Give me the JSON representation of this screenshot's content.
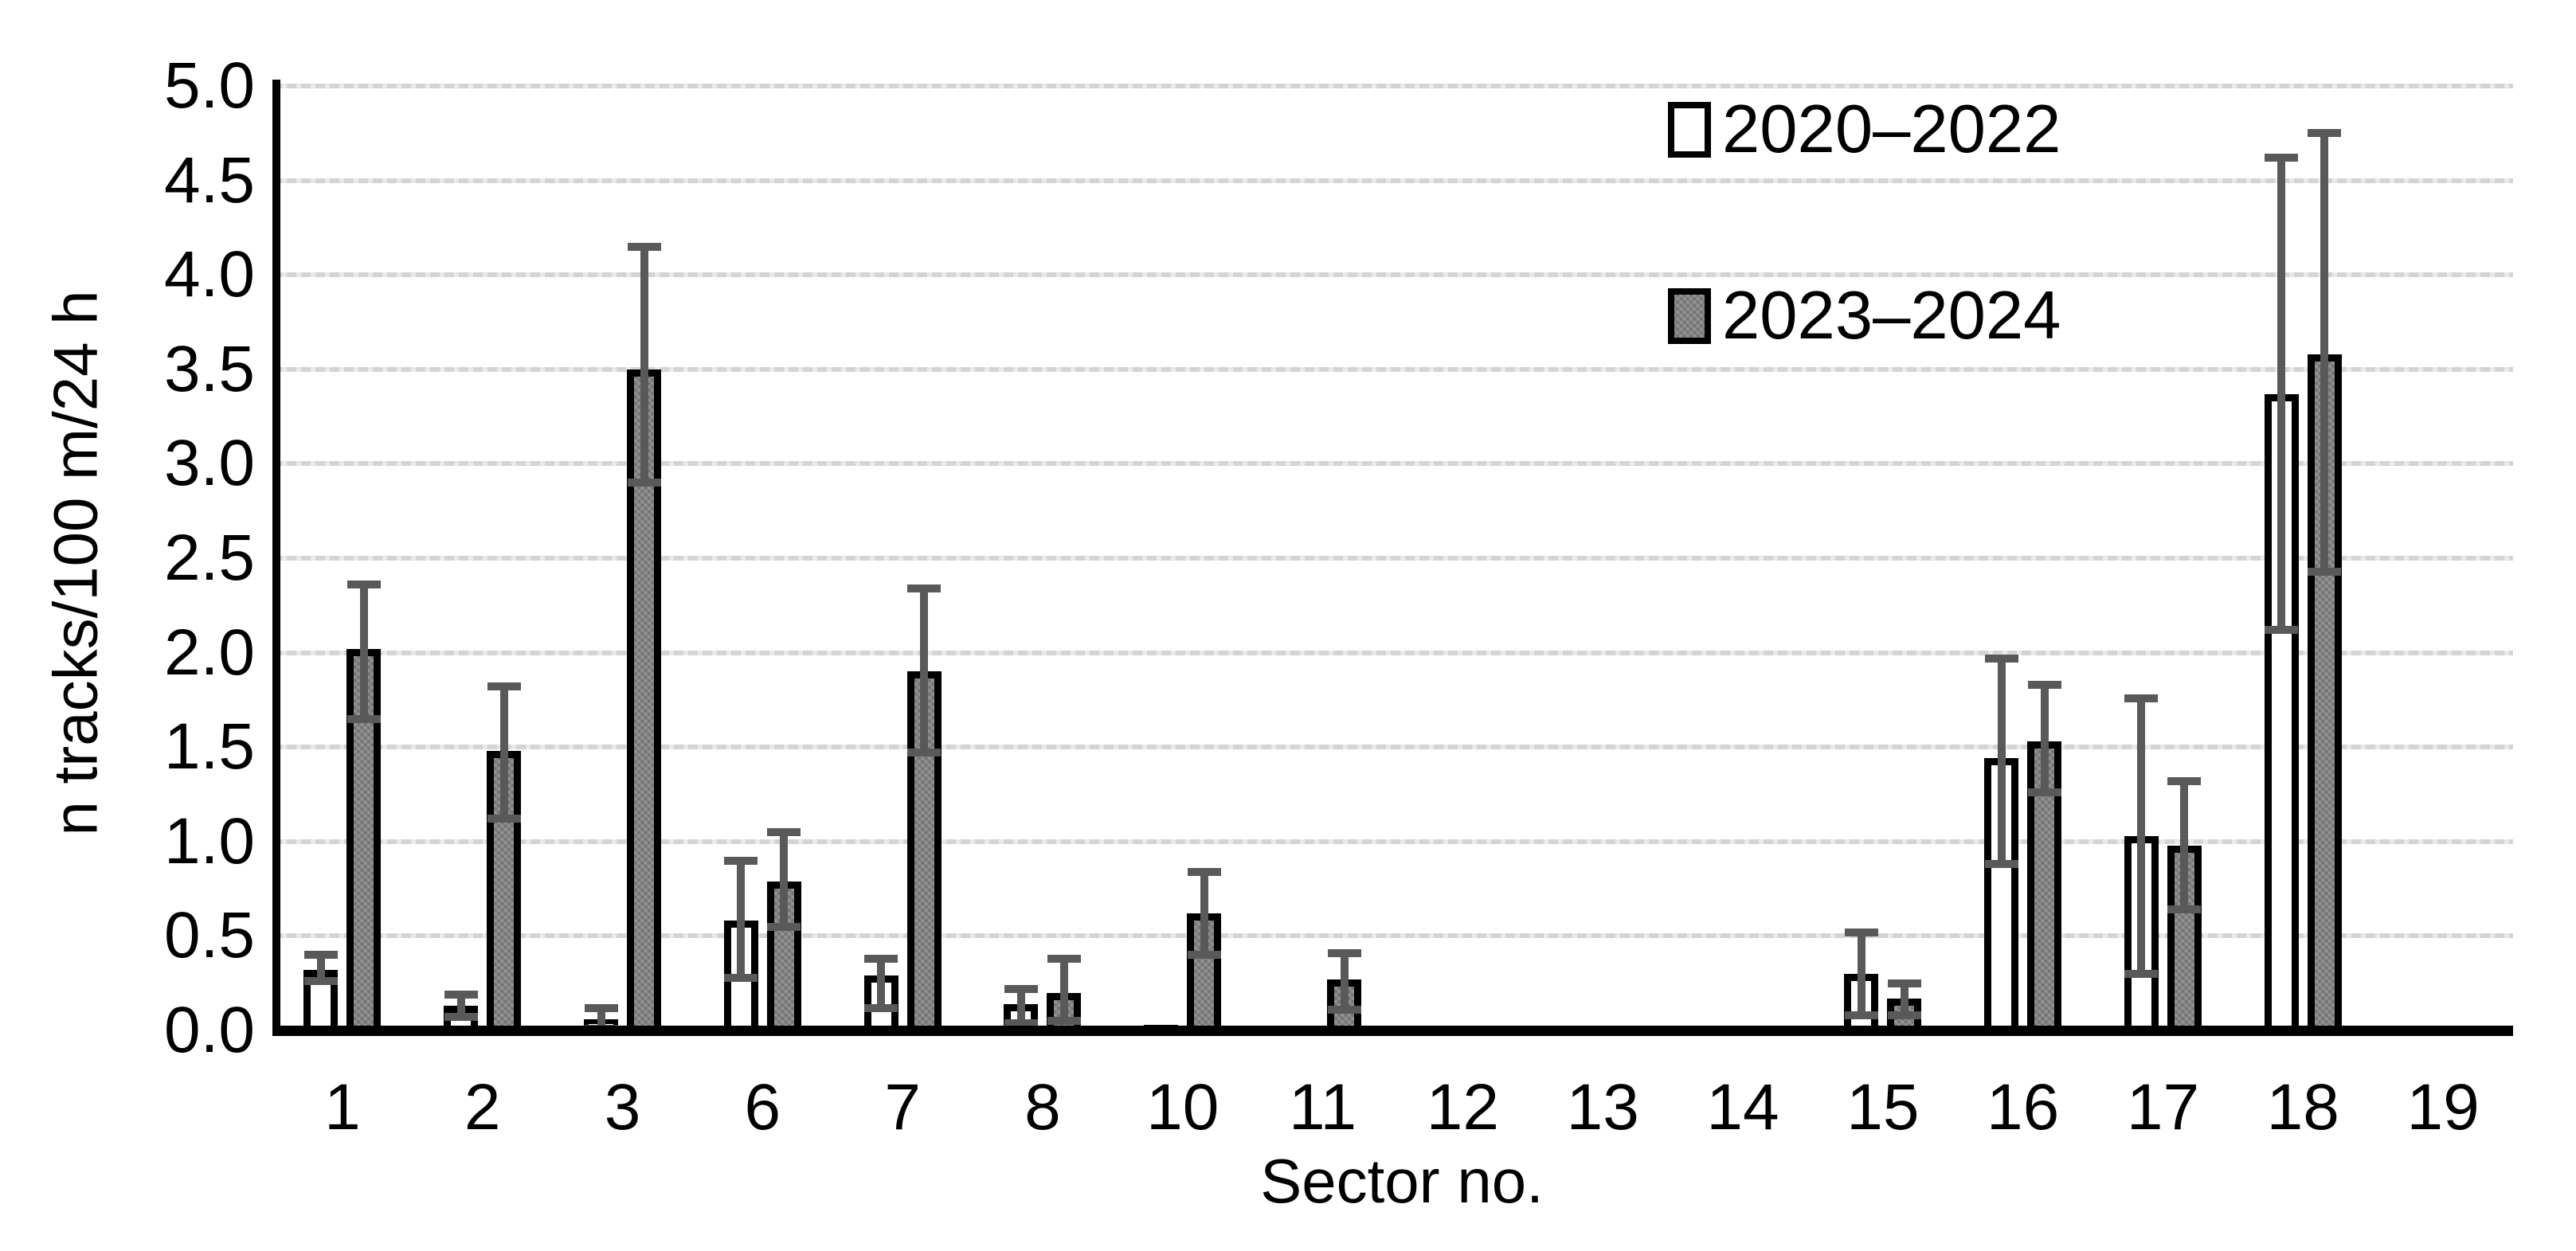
{
  "figure": {
    "background": "#ffffff"
  },
  "y_axis": {
    "title": "n tracks/100 m/24 h",
    "tick_labels": [
      "5.0",
      "4.5",
      "4.0",
      "3.5",
      "3.0",
      "2.5",
      "2.0",
      "1.5",
      "1.0",
      "0.5",
      "0.0"
    ],
    "min": 0.0,
    "max": 5.0,
    "step": 0.5
  },
  "x_axis": {
    "title": "Sector no.",
    "categories": [
      "1",
      "2",
      "3",
      "6",
      "7",
      "8",
      "10",
      "11",
      "12",
      "13",
      "14",
      "15",
      "16",
      "17",
      "18",
      "19"
    ]
  },
  "legend": [
    {
      "label": "2020–2022",
      "swatch": "white"
    },
    {
      "label": "2023–2024",
      "swatch": "gray"
    }
  ],
  "chart_data": {
    "type": "bar",
    "title": "",
    "xlabel": "Sector no.",
    "ylabel": "n tracks/100 m/24 h",
    "ylim": [
      0.0,
      5.0
    ],
    "ytick_step": 0.5,
    "grid": "horizontal",
    "legend_position": "top-right",
    "error_bars": true,
    "categories": [
      "1",
      "2",
      "3",
      "6",
      "7",
      "8",
      "10",
      "11",
      "12",
      "13",
      "14",
      "15",
      "16",
      "17",
      "18",
      "19"
    ],
    "series": [
      {
        "name": "2020–2022",
        "fill": "white",
        "values": [
          0.32,
          0.13,
          0.06,
          0.58,
          0.29,
          0.14,
          0.03,
          0,
          0,
          0,
          0,
          0.3,
          1.44,
          1.03,
          3.37,
          0
        ],
        "err_low": [
          0.26,
          0.07,
          0.01,
          0.28,
          0.12,
          0.04,
          null,
          null,
          null,
          null,
          null,
          0.08,
          0.88,
          0.3,
          2.12,
          null
        ],
        "err_high": [
          0.4,
          0.19,
          0.12,
          0.9,
          0.38,
          0.22,
          null,
          null,
          null,
          null,
          null,
          0.52,
          1.97,
          1.76,
          4.62,
          null
        ]
      },
      {
        "name": "2023–2024",
        "fill": "gray",
        "values": [
          2.02,
          1.48,
          3.5,
          0.79,
          1.9,
          0.2,
          0.62,
          0.27,
          0,
          0,
          0,
          0.17,
          1.53,
          0.98,
          3.58,
          0
        ],
        "err_low": [
          1.65,
          1.12,
          2.9,
          0.55,
          1.47,
          0.05,
          0.4,
          0.11,
          null,
          null,
          null,
          0.08,
          1.26,
          0.64,
          2.43,
          null
        ],
        "err_high": [
          2.36,
          1.82,
          4.15,
          1.05,
          2.34,
          0.38,
          0.84,
          0.41,
          null,
          null,
          null,
          0.25,
          1.83,
          1.32,
          4.75,
          null
        ]
      }
    ]
  },
  "colors": {
    "bar_white_fill": "#ffffff",
    "bar_gray_fill": "#828282",
    "bar_border": "#000000",
    "error_bar": "#595959",
    "gridline": "#d4d4d4",
    "axis": "#000000",
    "text": "#000000"
  }
}
